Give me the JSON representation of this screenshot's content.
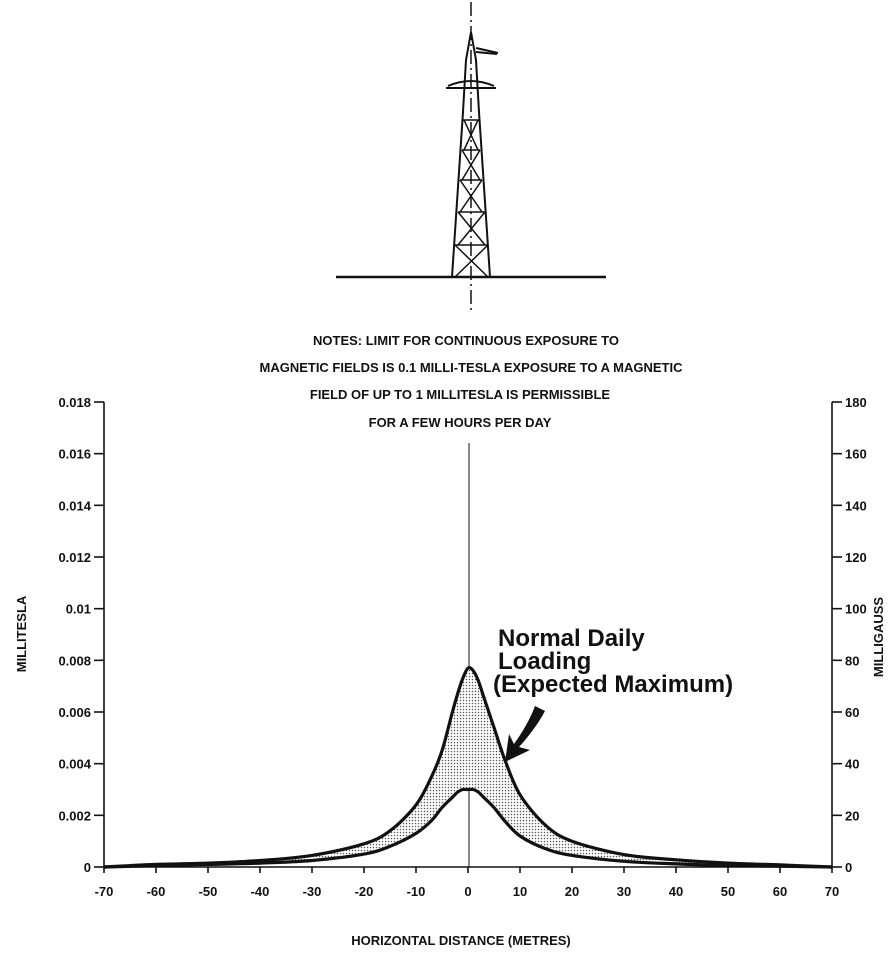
{
  "notes": [
    "NOTES: LIMIT FOR CONTINUOUS EXPOSURE TO",
    "MAGNETIC FIELDS IS 0.1 MILLI-TESLA EXPOSURE TO A MAGNETIC",
    "FIELD OF UP TO 1 MILLITESLA IS PERMISSIBLE",
    "FOR A FEW HOURS PER DAY"
  ],
  "annotation": [
    "Normal Daily",
    "Loading",
    "(Expected Maximum)"
  ],
  "colors": {
    "ink": "#111111",
    "band_fill": "#d9d9d9"
  },
  "chart_data": {
    "type": "area",
    "title": "",
    "xlabel": "HORIZONTAL DISTANCE (METRES)",
    "ylabel": "MILLITESLA",
    "ylabel_right": "MILLIGAUSS",
    "xlim": [
      -70,
      70
    ],
    "ylim": [
      0,
      0.018
    ],
    "ylim_right": [
      0,
      180
    ],
    "xticks": [
      "-70",
      "-60",
      "-50",
      "-40",
      "-30",
      "-20",
      "-10",
      "0",
      "10",
      "20",
      "30",
      "40",
      "50",
      "60",
      "70"
    ],
    "yticks": [
      "0",
      "0.002",
      "0.004",
      "0.006",
      "0.008",
      "0.01",
      "0.012",
      "0.014",
      "0.016",
      "0.018"
    ],
    "yticks_right": [
      "0",
      "20",
      "40",
      "60",
      "80",
      "100",
      "120",
      "140",
      "160",
      "180"
    ],
    "grid": false,
    "legend": "none",
    "x": [
      -70,
      -60,
      -50,
      -40,
      -30,
      -20,
      -15,
      -10,
      -7,
      -5,
      -3,
      -2,
      -1,
      0,
      1,
      2,
      3,
      5,
      7,
      10,
      15,
      20,
      30,
      40,
      50,
      60,
      70
    ],
    "series": [
      {
        "values": [
          0,
          0.0001,
          0.00015,
          0.00025,
          0.00045,
          0.0009,
          0.0014,
          0.0024,
          0.0035,
          0.0045,
          0.006,
          0.0067,
          0.0073,
          0.0077,
          0.0076,
          0.0072,
          0.0066,
          0.0054,
          0.0042,
          0.0028,
          0.0016,
          0.001,
          0.00048,
          0.00028,
          0.00015,
          8e-05,
          0
        ]
      },
      {
        "values": [
          0,
          5e-05,
          0.0001,
          0.00015,
          0.00025,
          0.0005,
          0.0008,
          0.0013,
          0.0018,
          0.0023,
          0.0027,
          0.0029,
          0.003,
          0.003,
          0.003,
          0.0029,
          0.0027,
          0.0023,
          0.0018,
          0.0012,
          0.0007,
          0.00045,
          0.00022,
          0.00012,
          6e-05,
          3e-05,
          0
        ]
      }
    ]
  }
}
